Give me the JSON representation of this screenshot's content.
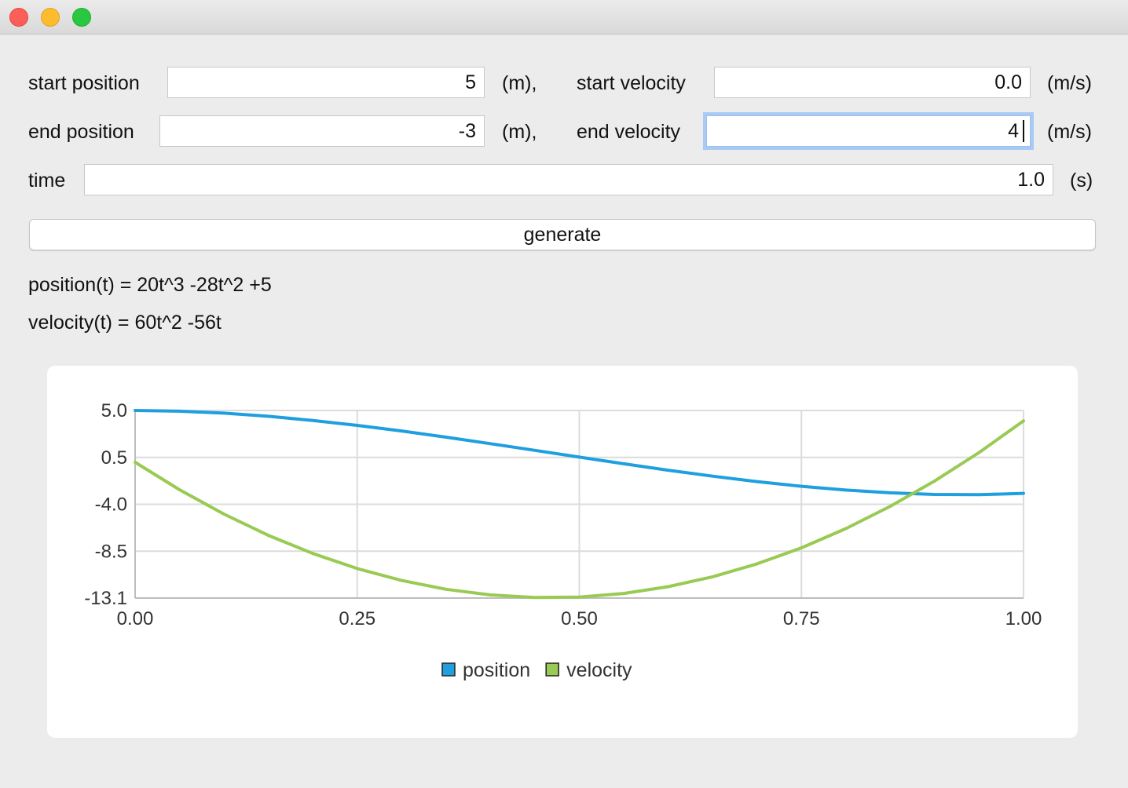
{
  "window": {
    "title": ""
  },
  "form": {
    "start_position": {
      "label": "start position",
      "value": "5",
      "unit": "(m),"
    },
    "start_velocity": {
      "label": "start velocity",
      "value": "0.0",
      "unit": "(m/s)"
    },
    "end_position": {
      "label": "end position",
      "value": "-3",
      "unit": "(m),"
    },
    "end_velocity": {
      "label": "end velocity",
      "value": "4",
      "unit": "(m/s)"
    },
    "time": {
      "label": "time",
      "value": "1.0",
      "unit": "(s)"
    },
    "generate_label": "generate"
  },
  "results": {
    "position_eq": "position(t) = 20t^3 -28t^2 +5",
    "velocity_eq": "velocity(t) = 60t^2 -56t"
  },
  "chart_data": {
    "type": "line",
    "title": "",
    "xlabel": "",
    "ylabel": "",
    "xlim": [
      0,
      1
    ],
    "ylim": [
      -13.1,
      5.0
    ],
    "x_ticks": [
      "0.00",
      "0.25",
      "0.50",
      "0.75",
      "1.00"
    ],
    "y_ticks": [
      "5.0",
      "0.5",
      "-4.0",
      "-8.5",
      "-13.1"
    ],
    "x": [
      0,
      0.05,
      0.1,
      0.15,
      0.2,
      0.25,
      0.3,
      0.35,
      0.4,
      0.45,
      0.5,
      0.55,
      0.6,
      0.65,
      0.7,
      0.75,
      0.8,
      0.85,
      0.9,
      0.95,
      1.0
    ],
    "series": [
      {
        "name": "position",
        "color": "#209fdf",
        "values": [
          5.0,
          4.9325,
          4.74,
          4.4375,
          4.04,
          3.5625,
          3.02,
          2.4275,
          1.8,
          1.1525,
          0.5,
          -0.1425,
          -0.76,
          -1.3375,
          -1.86,
          -2.3125,
          -2.68,
          -2.9475,
          -3.1,
          -3.1225,
          -3.0
        ]
      },
      {
        "name": "velocity",
        "color": "#99ca53",
        "values": [
          0.0,
          -2.65,
          -5.0,
          -7.05,
          -8.8,
          -10.25,
          -11.4,
          -12.25,
          -12.8,
          -13.05,
          -13.0,
          -12.65,
          -12.0,
          -11.05,
          -9.8,
          -8.25,
          -6.4,
          -4.25,
          -1.8,
          0.95,
          4.0
        ]
      }
    ],
    "grid": true,
    "legend": "bottom-center"
  }
}
